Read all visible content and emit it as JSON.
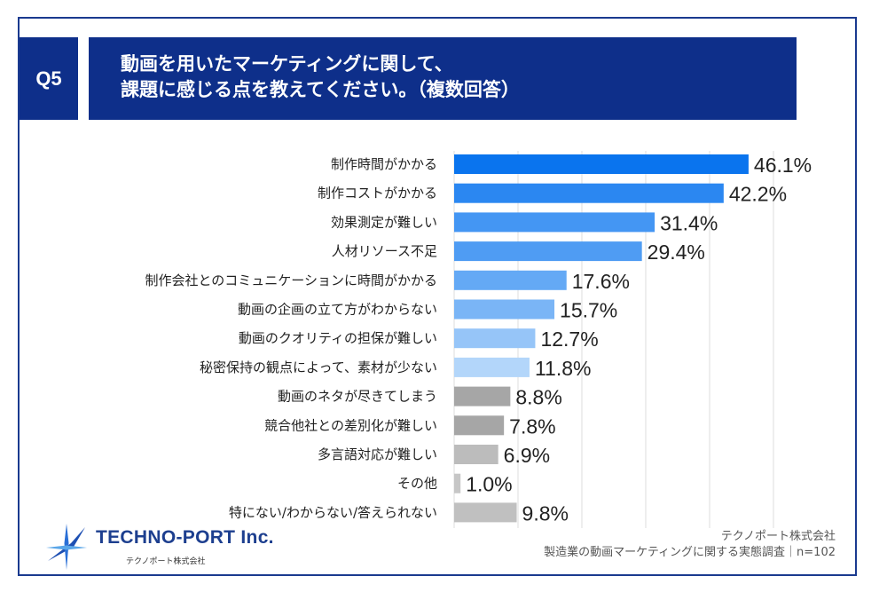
{
  "question": {
    "badge": "Q5",
    "title_line1": "動画を用いたマーケティングに関して、",
    "title_line2": "課題に感じる点を教えてください。（複数回答）"
  },
  "chart_data": {
    "type": "bar",
    "orientation": "horizontal",
    "categories": [
      "制作時間がかかる",
      "制作コストがかかる",
      "効果測定が難しい",
      "人材リソース不足",
      "制作会社とのコミュニケーションに時間がかかる",
      "動画の企画の立て方がわからない",
      "動画のクオリティの担保が難しい",
      "秘密保持の観点によって、素材が少ない",
      "動画のネタが尽きてしまう",
      "競合他社との差別化が難しい",
      "多言語対応が難しい",
      "その他",
      "特にない/わからない/答えられない"
    ],
    "values": [
      46.1,
      42.2,
      31.4,
      29.4,
      17.6,
      15.7,
      12.7,
      11.8,
      8.8,
      7.8,
      6.9,
      1.0,
      9.8
    ],
    "value_labels": [
      "46.1%",
      "42.2%",
      "31.4%",
      "29.4%",
      "17.6%",
      "15.7%",
      "12.7%",
      "11.8%",
      "8.8%",
      "7.8%",
      "6.9%",
      "1.0%",
      "9.8%"
    ],
    "bar_colors": [
      "#0a74ee",
      "#2b87f1",
      "#4496f3",
      "#4f9cf3",
      "#64a9f5",
      "#7ab5f6",
      "#96c5f8",
      "#b3d6fa",
      "#a6a6a6",
      "#a6a6a6",
      "#bcbcbc",
      "#c6c6c6",
      "#c0c0c0"
    ],
    "xlim": [
      0,
      50
    ],
    "grid": true,
    "unit": "%"
  },
  "logo": {
    "name": "TECHNO-PORT Inc.",
    "sub": "テクノポート株式会社"
  },
  "footer": {
    "company": "テクノポート株式会社",
    "survey": "製造業の動画マーケティングに関する実態調査｜n=102"
  }
}
